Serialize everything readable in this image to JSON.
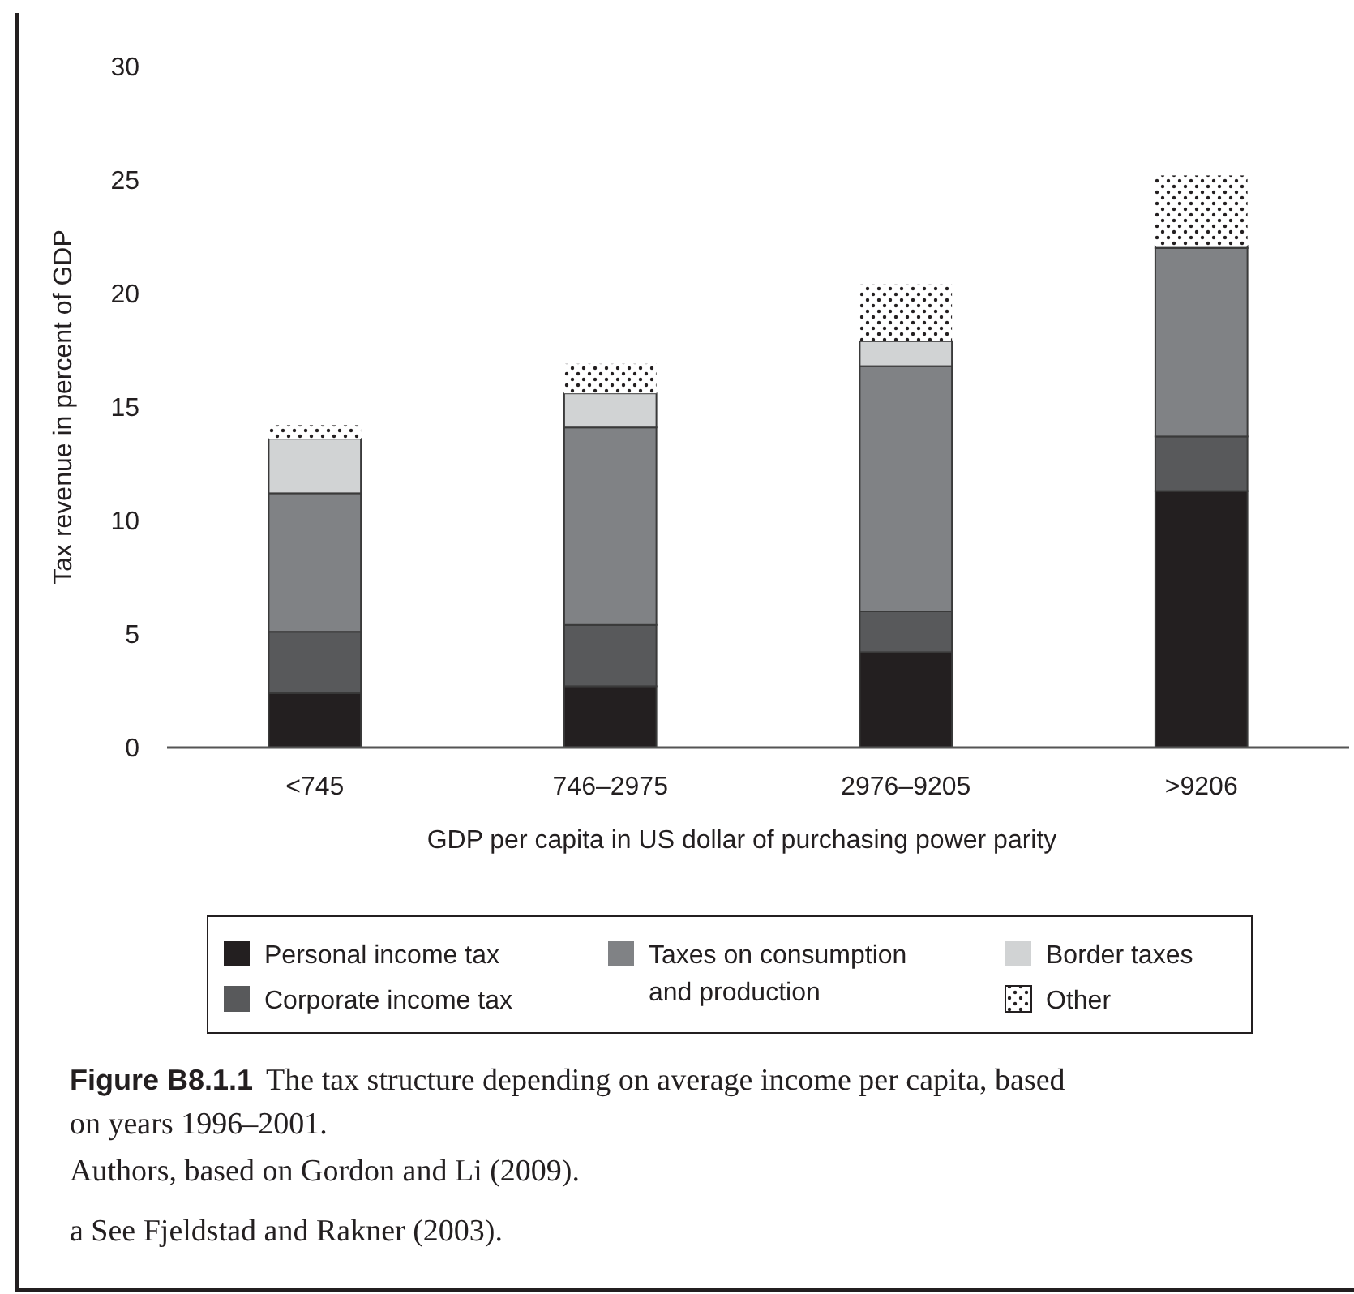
{
  "chart_data": {
    "type": "bar",
    "stacked": true,
    "xlabel": "GDP per capita in US dollar of purchasing power parity",
    "ylabel": "Tax revenue in percent of GDP",
    "categories": [
      "<745",
      "746–2975",
      "2976–9205",
      ">9206"
    ],
    "series": [
      {
        "name": "Personal income tax",
        "color": "#231f20",
        "values": [
          2.4,
          2.7,
          4.2,
          11.3
        ]
      },
      {
        "name": "Corporate income tax",
        "color": "#58595b",
        "values": [
          2.7,
          2.7,
          1.8,
          2.4
        ]
      },
      {
        "name": "Taxes on consumption and production",
        "color": "#808285",
        "values": [
          6.1,
          8.7,
          10.8,
          8.3
        ]
      },
      {
        "name": "Border taxes",
        "color": "#d1d3d4",
        "values": [
          2.4,
          1.5,
          1.1,
          0.1
        ]
      },
      {
        "name": "Other",
        "color": "#ffffff",
        "values": [
          0.6,
          1.3,
          2.5,
          3.1
        ]
      }
    ],
    "ylim": [
      0,
      30
    ],
    "yticks": [
      0,
      5,
      10,
      15,
      20,
      25,
      30
    ],
    "grid": false,
    "legend": "bottom",
    "annotations": [
      "Figure B8.1.1 The tax structure depending on average income per capita, based on years 1996–2001.",
      "Authors, based on Gordon and Li (2009).",
      "a See Fjeldstad and Rakner (2003)."
    ]
  }
}
